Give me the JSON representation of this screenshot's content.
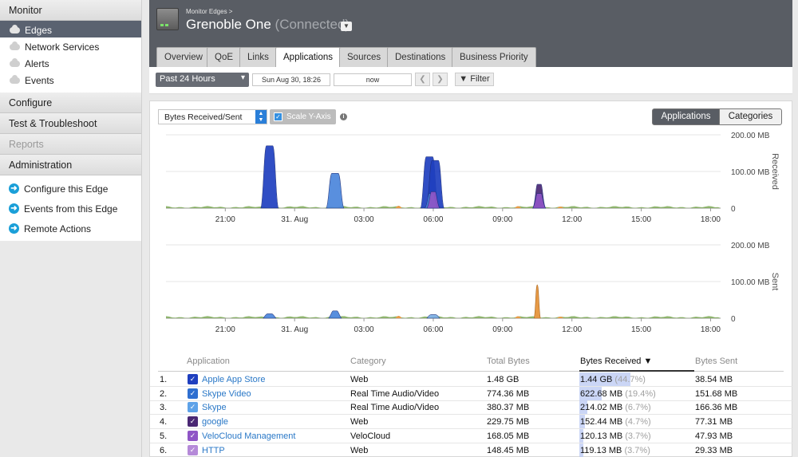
{
  "sidebar": {
    "monitor": "Monitor",
    "monitor_items": [
      "Edges",
      "Network Services",
      "Alerts",
      "Events"
    ],
    "configure": "Configure",
    "test": "Test & Troubleshoot",
    "reports": "Reports",
    "administration": "Administration",
    "actions": [
      "Configure this Edge",
      "Events from this Edge",
      "Remote Actions"
    ]
  },
  "header": {
    "breadcrumb": "Monitor Edges >",
    "edge_name": "Grenoble One",
    "edge_status": "(Connected)"
  },
  "tabs": [
    "Overview",
    "QoE",
    "Links",
    "Applications",
    "Sources",
    "Destinations",
    "Business Priority"
  ],
  "active_tab": "Applications",
  "toolbar": {
    "period": "Past 24 Hours",
    "start": "Sun Aug 30, 18:26",
    "end": "now",
    "filter": "Filter"
  },
  "controls": {
    "metric": "Bytes Received/Sent",
    "scale": "Scale Y-Axis",
    "view_applications": "Applications",
    "view_categories": "Categories"
  },
  "colors": {
    "apple_app_store": "#1f3fbf",
    "skype_video": "#4b86dc",
    "skype": "#7db0e6",
    "google": "#4a2874",
    "velocloud": "#8f55c6",
    "http": "#b58ad8",
    "orange": "#e79a46",
    "green": "#6a9e3c"
  },
  "chart_data": [
    {
      "type": "area",
      "title": "",
      "ylabel": "Received",
      "x_ticks": [
        "21:00",
        "31. Aug",
        "03:00",
        "06:00",
        "09:00",
        "12:00",
        "15:00",
        "18:00"
      ],
      "y_ticks": [
        "200.00 MB",
        "100.00 MB",
        "0"
      ],
      "ylim_mb": [
        0,
        200
      ],
      "series": [
        {
          "name": "Apple App Store",
          "peaks": [
            {
              "x": "22:55",
              "y": 170
            },
            {
              "x": "05:50",
              "y": 140
            },
            {
              "x": "06:05",
              "y": 130
            }
          ]
        },
        {
          "name": "Skype Video",
          "peaks": [
            {
              "x": "01:45",
              "y": 95
            },
            {
              "x": "05:55",
              "y": 40
            }
          ]
        },
        {
          "name": "google",
          "peaks": [
            {
              "x": "10:35",
              "y": 65
            }
          ]
        },
        {
          "name": "VeloCloud Management",
          "peaks": [
            {
              "x": "06:00",
              "y": 45
            },
            {
              "x": "10:35",
              "y": 40
            }
          ]
        }
      ]
    },
    {
      "type": "area",
      "title": "",
      "ylabel": "Sent",
      "x_ticks": [
        "21:00",
        "31. Aug",
        "03:00",
        "06:00",
        "09:00",
        "12:00",
        "15:00",
        "18:00"
      ],
      "y_ticks": [
        "200.00 MB",
        "100.00 MB",
        "0"
      ],
      "ylim_mb": [
        0,
        200
      ],
      "series": [
        {
          "name": "Skype Video",
          "peaks": [
            {
              "x": "01:45",
              "y": 20
            },
            {
              "x": "22:55",
              "y": 12
            }
          ]
        },
        {
          "name": "Skype",
          "peaks": [
            {
              "x": "06:00",
              "y": 10
            }
          ]
        }
      ]
    }
  ],
  "table": {
    "columns": [
      "Application",
      "Category",
      "Total Bytes",
      "Bytes Received",
      "Bytes Sent"
    ],
    "rows": [
      {
        "idx": "1.",
        "app": "Apple App Store",
        "category": "Web",
        "total": "1.48 GB",
        "received": "1.44 GB",
        "pct": "(44.7%)",
        "sent": "38.54 MB",
        "share": 0.447,
        "color": "#1f3fbf"
      },
      {
        "idx": "2.",
        "app": "Skype Video",
        "category": "Real Time Audio/Video",
        "total": "774.36 MB",
        "received": "622.68 MB",
        "pct": "(19.4%)",
        "sent": "151.68 MB",
        "share": 0.194,
        "color": "#2f6fd0"
      },
      {
        "idx": "3.",
        "app": "Skype",
        "category": "Real Time Audio/Video",
        "total": "380.37 MB",
        "received": "214.02 MB",
        "pct": "(6.7%)",
        "sent": "166.36 MB",
        "share": 0.067,
        "color": "#5ea2e8"
      },
      {
        "idx": "4.",
        "app": "google",
        "category": "Web",
        "total": "229.75 MB",
        "received": "152.44 MB",
        "pct": "(4.7%)",
        "sent": "77.31 MB",
        "share": 0.047,
        "color": "#4a2874"
      },
      {
        "idx": "5.",
        "app": "VeloCloud Management",
        "category": "VeloCloud",
        "total": "168.05 MB",
        "received": "120.13 MB",
        "pct": "(3.7%)",
        "sent": "47.93 MB",
        "share": 0.037,
        "color": "#8f55c6"
      },
      {
        "idx": "6.",
        "app": "HTTP",
        "category": "Web",
        "total": "148.45 MB",
        "received": "119.13 MB",
        "pct": "(3.7%)",
        "sent": "29.33 MB",
        "share": 0.037,
        "color": "#b58ad8"
      }
    ]
  }
}
